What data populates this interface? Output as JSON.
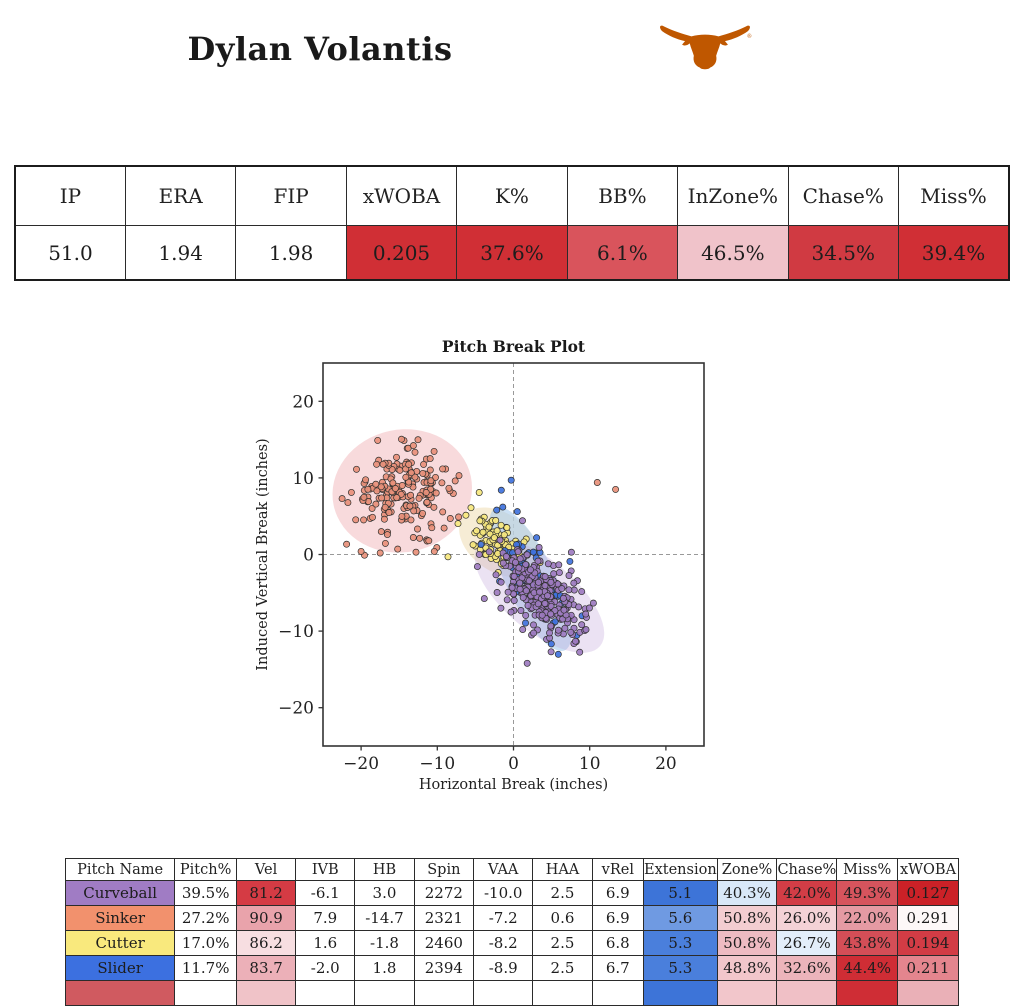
{
  "header": {
    "player_name": "Dylan Volantis",
    "team_logo": "texas-longhorns",
    "logo_color": "#bf5700",
    "registered_mark": "®"
  },
  "summary_table": {
    "columns": [
      "IP",
      "ERA",
      "FIP",
      "xWOBA",
      "K%",
      "BB%",
      "InZone%",
      "Chase%",
      "Miss%"
    ],
    "values": [
      "51.0",
      "1.94",
      "1.98",
      "0.205",
      "37.6%",
      "6.1%",
      "46.5%",
      "34.5%",
      "39.4%"
    ],
    "cell_colors": [
      "#ffffff",
      "#ffffff",
      "#ffffff",
      "#d02f35",
      "#d02f35",
      "#d9545c",
      "#f0c3ca",
      "#d03a42",
      "#d02f35"
    ]
  },
  "chart_data": {
    "type": "scatter",
    "title": "Pitch Break Plot",
    "xlabel": "Horizontal Break (inches)",
    "ylabel": "Induced Vertical Break (inches)",
    "xlim": [
      -25,
      25
    ],
    "ylim": [
      -25,
      25
    ],
    "xticks": [
      -20,
      -10,
      0,
      10,
      20
    ],
    "yticks": [
      -20,
      -10,
      0,
      10,
      20
    ],
    "zero_lines": "dashed-gray",
    "series": [
      {
        "name": "Sinker",
        "marker_color": "#e8907a",
        "count": 195,
        "center": [
          -14.6,
          8.3
        ],
        "spread": [
          3.3,
          2.6
        ],
        "angle_deg": 12,
        "outliers": [
          [
            11.0,
            9.4
          ],
          [
            13.4,
            8.5
          ],
          [
            -24.9,
            5.7
          ],
          [
            -20.0,
            0.4
          ],
          [
            -17.5,
            0.2
          ],
          [
            -15.2,
            0.7
          ],
          [
            -12.8,
            0.3
          ],
          [
            -10.4,
            0.4
          ],
          [
            -7.2,
            4.9
          ]
        ],
        "ellipse": {
          "rx": 4.6,
          "ry": 4.0,
          "angle_deg": 12,
          "fill": "#f2b6ba",
          "opacity": 0.5
        }
      },
      {
        "name": "Cutter",
        "marker_color": "#f7e87e",
        "count": 115,
        "center": [
          -1.9,
          1.6
        ],
        "spread": [
          2.3,
          1.3
        ],
        "angle_deg": -35,
        "outliers": [
          [
            -4.5,
            8.1
          ],
          [
            -8.6,
            -0.3
          ]
        ],
        "ellipse": {
          "rx": 2.9,
          "ry": 1.9,
          "angle_deg": -35,
          "fill": "#eedcb2",
          "opacity": 0.55
        }
      },
      {
        "name": "Slider",
        "marker_color": "#3f72dd",
        "count": 82,
        "center": [
          2.2,
          -3.2
        ],
        "spread": [
          3.4,
          1.4
        ],
        "angle_deg": -55,
        "outliers": [
          [
            -1.6,
            8.4
          ],
          [
            -0.3,
            9.7
          ],
          [
            0.5,
            5.6
          ],
          [
            -2.2,
            5.8
          ],
          [
            7.4,
            -0.9
          ],
          [
            9.0,
            -8.0
          ]
        ],
        "ellipse": {
          "rx": 5.2,
          "ry": 1.6,
          "angle_deg": -64,
          "fill": "#a9cbec",
          "opacity": 0.6
        }
      },
      {
        "name": "Curveball",
        "marker_color": "#9d7bc0",
        "count": 275,
        "center": [
          3.4,
          -5.3
        ],
        "spread": [
          3.3,
          1.9
        ],
        "angle_deg": -38,
        "outliers": [
          [
            7.6,
            0.3
          ],
          [
            1.8,
            -14.2
          ]
        ],
        "ellipse": {
          "rx": 5.2,
          "ry": 2.3,
          "angle_deg": -40,
          "fill": "#c2a6da",
          "opacity": 0.32
        }
      }
    ]
  },
  "pitch_table": {
    "columns": [
      "Pitch Name",
      "Pitch%",
      "Vel",
      "IVB",
      "HB",
      "Spin",
      "VAA",
      "HAA",
      "vRel",
      "Extension",
      "Zone%",
      "Chase%",
      "Miss%",
      "xWOBA"
    ],
    "rows": [
      {
        "name": "Curveball",
        "name_color": "#a07cc4",
        "values": [
          "39.5%",
          "81.2",
          "-6.1",
          "3.0",
          "2272",
          "-10.0",
          "2.5",
          "6.9",
          "5.1",
          "40.3%",
          "42.0%",
          "49.3%",
          "0.127"
        ],
        "value_colors": [
          "#ffffff",
          "#d53b44",
          "#ffffff",
          "#ffffff",
          "#ffffff",
          "#ffffff",
          "#ffffff",
          "#ffffff",
          "#3d74d8",
          "#d9e8f8",
          "#d23d46",
          "#d6545d",
          "#cb2127"
        ]
      },
      {
        "name": "Sinker",
        "name_color": "#f2916d",
        "values": [
          "27.2%",
          "90.9",
          "7.9",
          "-14.7",
          "2321",
          "-7.2",
          "0.6",
          "6.9",
          "5.6",
          "50.8%",
          "26.0%",
          "22.0%",
          "0.291"
        ],
        "value_colors": [
          "#ffffff",
          "#e9a3ab",
          "#ffffff",
          "#ffffff",
          "#ffffff",
          "#ffffff",
          "#ffffff",
          "#ffffff",
          "#6f9ae2",
          "#f3cdd1",
          "#f4d2d6",
          "#e59aa3",
          "#fdf8f8"
        ]
      },
      {
        "name": "Cutter",
        "name_color": "#f9e97d",
        "values": [
          "17.0%",
          "86.2",
          "1.6",
          "-1.8",
          "2460",
          "-8.2",
          "2.5",
          "6.8",
          "5.3",
          "50.8%",
          "26.7%",
          "43.8%",
          "0.194"
        ],
        "value_colors": [
          "#ffffff",
          "#f7dee1",
          "#ffffff",
          "#ffffff",
          "#ffffff",
          "#ffffff",
          "#ffffff",
          "#ffffff",
          "#4a7fdc",
          "#eebbc2",
          "#e3eefa",
          "#d44e57",
          "#d23c45"
        ]
      },
      {
        "name": "Slider",
        "name_color": "#3c70e0",
        "values": [
          "11.7%",
          "83.7",
          "-2.0",
          "1.8",
          "2394",
          "-8.9",
          "2.5",
          "6.7",
          "5.3",
          "48.8%",
          "32.6%",
          "44.4%",
          "0.211"
        ],
        "value_colors": [
          "#ffffff",
          "#ecb0b8",
          "#ffffff",
          "#ffffff",
          "#ffffff",
          "#ffffff",
          "#ffffff",
          "#ffffff",
          "#4a7fdc",
          "#f2c6cb",
          "#ecb4bb",
          "#cf2d35",
          "#e4858e"
        ]
      }
    ],
    "partial_row_colors": [
      "#d05a60",
      "#ffffff",
      "#f0c3c8",
      "#ffffff",
      "#ffffff",
      "#ffffff",
      "#ffffff",
      "#ffffff",
      "#ffffff",
      "#3d74d8",
      "#f2c6cb",
      "#f0c0c6",
      "#cf2d35",
      "#eab0b7"
    ]
  }
}
